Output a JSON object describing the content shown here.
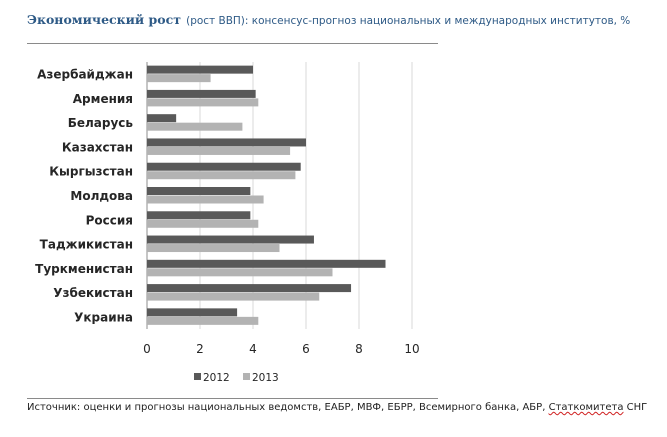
{
  "title": {
    "bold": "Экономический рост",
    "rest": "(рост ВВП): консенсус-прогноз национальных и международных институтов, %"
  },
  "chart_data": {
    "type": "bar",
    "orientation": "horizontal",
    "categories": [
      "Азербайджан",
      "Армения",
      "Беларусь",
      "Казахстан",
      "Кыргызстан",
      "Молдова",
      "Россия",
      "Таджикистан",
      "Туркменистан",
      "Узбекистан",
      "Украина"
    ],
    "series": [
      {
        "name": "2012",
        "color": "#595959",
        "values": [
          4.0,
          4.1,
          1.1,
          6.0,
          5.8,
          3.9,
          3.9,
          6.3,
          9.0,
          7.7,
          3.4
        ]
      },
      {
        "name": "2013",
        "color": "#b3b3b3",
        "values": [
          2.4,
          4.2,
          3.6,
          5.4,
          5.6,
          4.4,
          4.2,
          5.0,
          7.0,
          6.5,
          4.2
        ]
      }
    ],
    "xlim": [
      0,
      10
    ],
    "xticks": [
      "0",
      "2",
      "4",
      "6",
      "8",
      "10"
    ],
    "grid": true,
    "legend": "bottom"
  },
  "source": {
    "text": "Источник: оценки и прогнозы национальных ведомств, ЕАБР, МВФ, ЕБРР, Всемирного банка, АБР, ",
    "underlined": "Статкомитета",
    "tail": " СНГ"
  }
}
